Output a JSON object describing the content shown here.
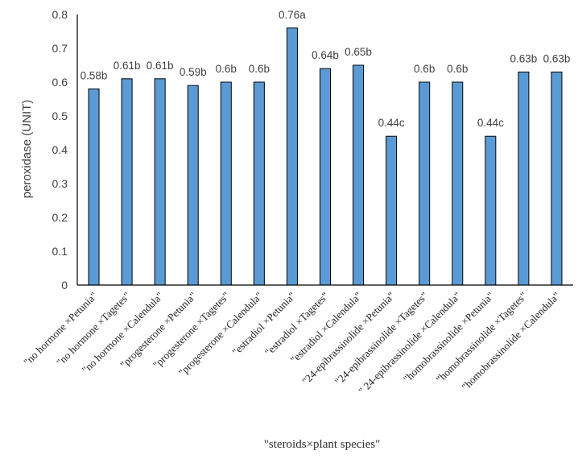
{
  "chart_data": {
    "type": "bar",
    "title": "",
    "xlabel": "\"steroids×plant species\"",
    "ylabel": "peroxidase (UNIT)",
    "ylim": [
      0,
      0.8
    ],
    "yticks": [
      "0",
      "0.1",
      "0.2",
      "0.3",
      "0.4",
      "0.5",
      "0.6",
      "0.7",
      "0.8"
    ],
    "grid": false,
    "bar_color": "#5B9BD5",
    "bar_edge_color": "#000000",
    "categories": [
      "\"no hormone ×Petunia\"",
      "\"no hormone ×Tagetes\"",
      "\"no hormone ×Calendula\"",
      "\"progesterone ×Petunia\"",
      "\"progesterone ×Tagetes\"",
      "\"progesterone ×Calendula\"",
      "\"estradiol ×Petunia\"",
      "\"estradiol ×Tagetes\"",
      "\"estradiol ×Calendula\"",
      "\"24-epibrassinolide ×Petunia\"",
      "\"24-epibrassinolide ×Tagetes\"",
      "\" 24-epibrassinolide ×Calendula\"",
      "\"homobrassinolide ×Petunia\"",
      "\"homobrassinolide ×Tagetes\"",
      "\"homobrassinolide ×Calendula\""
    ],
    "values": [
      0.58,
      0.61,
      0.61,
      0.59,
      0.6,
      0.6,
      0.76,
      0.64,
      0.65,
      0.44,
      0.6,
      0.6,
      0.44,
      0.63,
      0.63
    ],
    "data_labels": [
      "0.58b",
      "0.61b",
      "0.61b",
      "0.59b",
      "0.6b",
      "0.6b",
      "0.76a",
      "0.64b",
      "0.65b",
      "0.44c",
      "0.6b",
      "0.6b",
      "0.44c",
      "0.63b",
      "0.63b"
    ]
  }
}
